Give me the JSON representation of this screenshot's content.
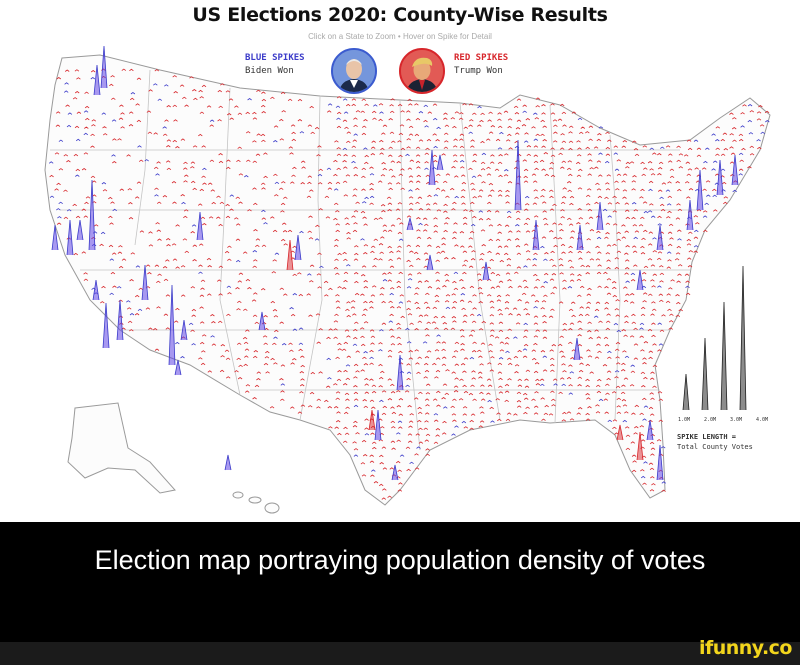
{
  "map": {
    "title": "US Elections 2020: County-Wise Results",
    "subtitle": "Click on a State to Zoom • Hover on Spike for Detail",
    "legend": {
      "blue_key": "BLUE SPIKES",
      "blue_value": "Biden Won",
      "red_key": "RED SPIKES",
      "red_value": "Trump Won"
    },
    "spike_scale": {
      "labels": [
        "1.0M",
        "2.0M",
        "3.0M",
        "4.0M"
      ],
      "values": [
        1,
        2,
        3,
        4
      ],
      "key": "SPIKE LENGTH =",
      "value": "Total County Votes"
    },
    "colors": {
      "blue": "#3b3bc9",
      "red": "#d7262b",
      "border": "#b5b5b5"
    },
    "icons": [
      "biden-portrait-icon",
      "trump-portrait-icon"
    ]
  },
  "caption": "Election map portraying population density of votes",
  "watermark": "ifunny.co"
}
